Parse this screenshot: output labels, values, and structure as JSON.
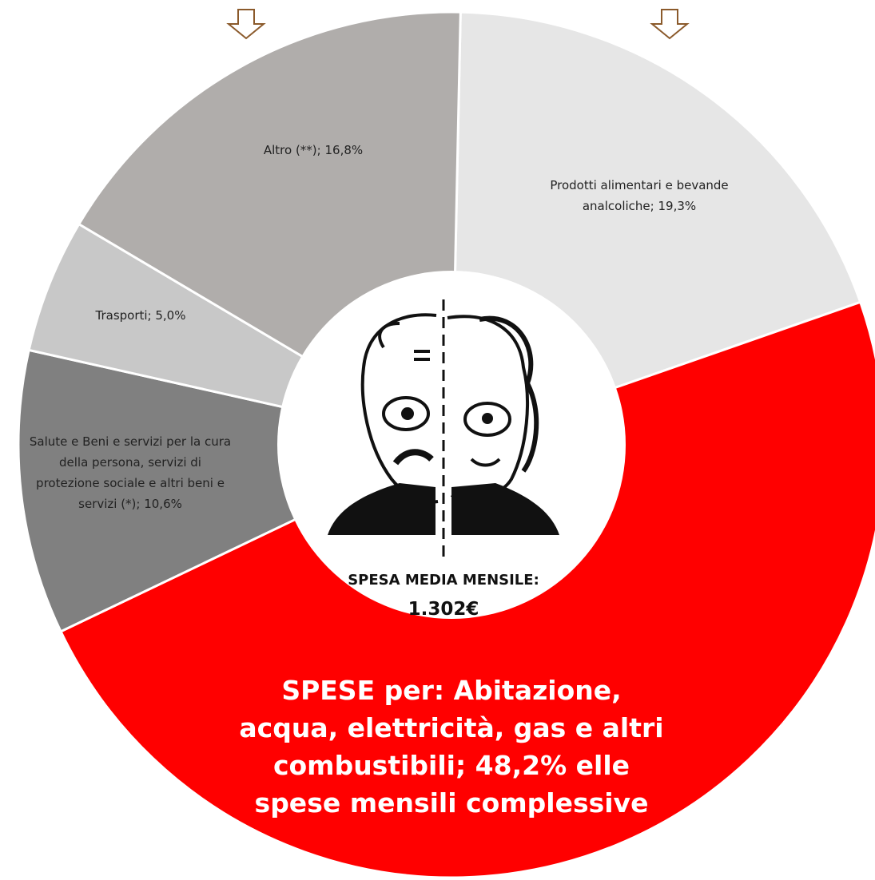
{
  "chart_data": {
    "type": "donut",
    "values": [
      19.3,
      48.2,
      10.6,
      5.0,
      16.8
    ],
    "value_labels": [
      "Prodotti alimentari e bevande analcoliche; 19,3%",
      "SPESE per: Abitazione, acqua, elettricità, gas e altri combustibili; 48,2% elle spese mensili complessive",
      "Salute e Beni e servizi per la cura della persona, servizi di protezione sociale e altri beni e servizi (*); 10,6%",
      "Trasporti; 5,0%",
      "Altro (**); 16,8%"
    ],
    "colors": [
      "#e6e6e6",
      "#ff0000",
      "#808080",
      "#c8c8c8",
      "#b0adab"
    ],
    "center_label": [
      "SPESA MEDIA MENSILE:",
      "1.302€"
    ]
  }
}
